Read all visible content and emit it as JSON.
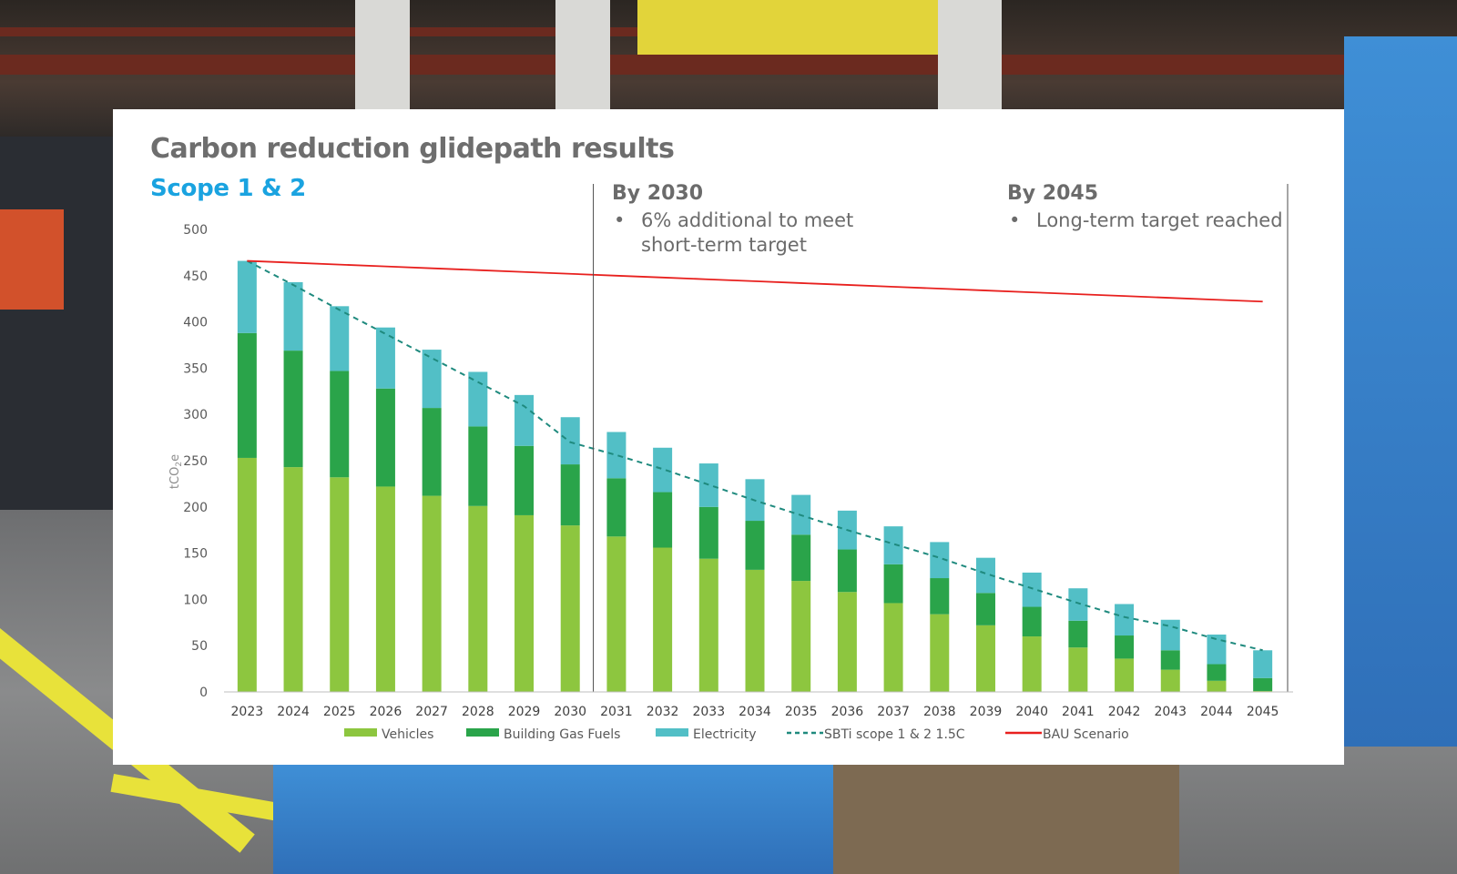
{
  "colors": {
    "vehicles": "#8dc63f",
    "building_gas": "#2aa44a",
    "electricity": "#52bfc6",
    "sbti": "#1f8a7e",
    "bau": "#e8201e",
    "title": "#6e6e6e",
    "subtitle": "#1aa3e0"
  },
  "slide": {
    "title": "Carbon reduction glidepath results",
    "subtitle": "Scope 1 & 2"
  },
  "notes": {
    "by_2030": {
      "heading": "By 2030",
      "bullet": "•",
      "text": "6% additional to meet short-term target"
    },
    "by_2045": {
      "heading": "By 2045",
      "bullet": "•",
      "text": "Long-term target reached"
    }
  },
  "chart_data": {
    "type": "bar",
    "stacked": true,
    "title": "Carbon reduction glidepath results",
    "subtitle": "Scope 1 & 2",
    "xlabel": "",
    "ylabel": "tCO2e",
    "ylabel_main": "tCO",
    "ylabel_sub": "2",
    "ylabel_tail": "e",
    "ylim": [
      0,
      500
    ],
    "yticks": [
      0,
      50,
      100,
      150,
      200,
      250,
      300,
      350,
      400,
      450,
      500
    ],
    "categories": [
      "2023",
      "2024",
      "2025",
      "2026",
      "2027",
      "2028",
      "2029",
      "2030",
      "2031",
      "2032",
      "2033",
      "2034",
      "2035",
      "2036",
      "2037",
      "2038",
      "2039",
      "2040",
      "2041",
      "2042",
      "2043",
      "2044",
      "2045"
    ],
    "series": [
      {
        "name": "Vehicles",
        "kind": "bar",
        "values": [
          253,
          243,
          232,
          222,
          212,
          201,
          191,
          180,
          168,
          156,
          144,
          132,
          120,
          108,
          96,
          84,
          72,
          60,
          48,
          36,
          24,
          12,
          1
        ]
      },
      {
        "name": "Building Gas Fuels",
        "kind": "bar",
        "values": [
          135,
          126,
          115,
          106,
          95,
          86,
          75,
          66,
          63,
          60,
          56,
          53,
          50,
          46,
          42,
          39,
          35,
          32,
          29,
          25,
          21,
          18,
          14
        ]
      },
      {
        "name": "Electricity",
        "kind": "bar",
        "values": [
          78,
          74,
          70,
          66,
          63,
          59,
          55,
          51,
          50,
          48,
          47,
          45,
          43,
          42,
          41,
          39,
          38,
          37,
          35,
          34,
          33,
          32,
          30
        ]
      },
      {
        "name": "SBTi scope 1 & 2 1.5C",
        "kind": "line",
        "style": "dashed",
        "values": [
          466,
          440,
          413,
          387,
          361,
          335,
          309,
          270,
          256,
          241,
          224,
          207,
          191,
          175,
          160,
          145,
          128,
          112,
          96,
          81,
          71,
          57,
          45
        ]
      },
      {
        "name": "BAU Scenario",
        "kind": "line",
        "style": "solid",
        "values": [
          466,
          464,
          462,
          460,
          458,
          456,
          454,
          452,
          450,
          448,
          446,
          444,
          442,
          440,
          438,
          436,
          434,
          432,
          430,
          428,
          426,
          424,
          422
        ]
      }
    ],
    "markers": [
      "2030",
      "2045"
    ],
    "legend": [
      "Vehicles",
      "Building Gas Fuels",
      "Electricity",
      "SBTi scope 1 & 2 1.5C",
      "BAU Scenario"
    ],
    "legend_position": "bottom"
  }
}
